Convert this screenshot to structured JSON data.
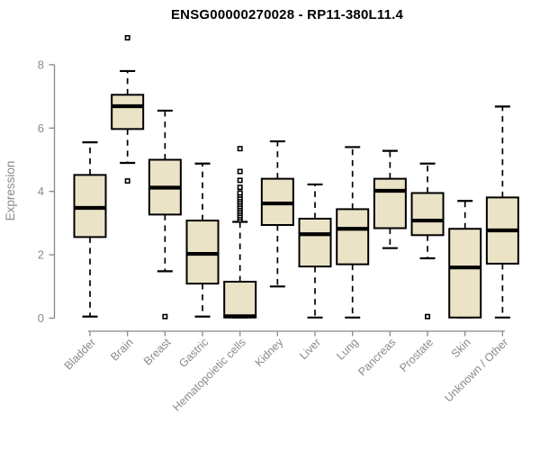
{
  "chart_data": {
    "type": "boxplot",
    "title": "ENSG00000270028 - RP11-380L11.4",
    "ylabel": "Expression",
    "xlabel": "",
    "ylim": [
      0,
      8
    ],
    "yticks": [
      0,
      2,
      4,
      6,
      8
    ],
    "grid": false,
    "legend": "none",
    "categories": [
      "Bladder",
      "Brain",
      "Breast",
      "Gastric",
      "Hematopoietic cells",
      "Kidney",
      "Liver",
      "Lung",
      "Pancreas",
      "Prostate",
      "Skin",
      "Unknown / Other"
    ],
    "series": [
      {
        "name": "Bladder",
        "whisker_low": 0.05,
        "q1": 2.56,
        "median": 3.48,
        "q3": 4.52,
        "whisker_high": 5.55,
        "outliers": []
      },
      {
        "name": "Brain",
        "whisker_low": 4.9,
        "q1": 5.97,
        "median": 6.69,
        "q3": 7.05,
        "whisker_high": 7.8,
        "outliers": [
          8.85,
          4.33
        ]
      },
      {
        "name": "Breast",
        "whisker_low": 1.48,
        "q1": 3.27,
        "median": 4.12,
        "q3": 5.0,
        "whisker_high": 6.55,
        "outliers": [
          0.05
        ]
      },
      {
        "name": "Gastric",
        "whisker_low": 0.05,
        "q1": 1.09,
        "median": 2.03,
        "q3": 3.08,
        "whisker_high": 4.88,
        "outliers": []
      },
      {
        "name": "Hematopoietic cells",
        "whisker_low": 0.02,
        "q1": 0.02,
        "median": 0.06,
        "q3": 1.15,
        "whisker_high": 3.04,
        "outliers": [
          3.1,
          3.17,
          3.24,
          3.31,
          3.38,
          3.45,
          3.52,
          3.59,
          3.66,
          3.73,
          3.8,
          3.88,
          3.95,
          4.13,
          4.35,
          4.63,
          5.35
        ]
      },
      {
        "name": "Kidney",
        "whisker_low": 1.0,
        "q1": 2.94,
        "median": 3.62,
        "q3": 4.4,
        "whisker_high": 5.58,
        "outliers": []
      },
      {
        "name": "Liver",
        "whisker_low": 0.02,
        "q1": 1.63,
        "median": 2.65,
        "q3": 3.14,
        "whisker_high": 4.22,
        "outliers": []
      },
      {
        "name": "Lung",
        "whisker_low": 0.02,
        "q1": 1.7,
        "median": 2.82,
        "q3": 3.44,
        "whisker_high": 5.4,
        "outliers": []
      },
      {
        "name": "Pancreas",
        "whisker_low": 2.21,
        "q1": 2.84,
        "median": 4.02,
        "q3": 4.4,
        "whisker_high": 5.28,
        "outliers": []
      },
      {
        "name": "Prostate",
        "whisker_low": 1.89,
        "q1": 2.62,
        "median": 3.08,
        "q3": 3.95,
        "whisker_high": 4.88,
        "outliers": [
          0.05
        ]
      },
      {
        "name": "Skin",
        "whisker_low": 0.02,
        "q1": 0.02,
        "median": 1.6,
        "q3": 2.82,
        "whisker_high": 3.7,
        "outliers": []
      },
      {
        "name": "Unknown / Other",
        "whisker_low": 0.02,
        "q1": 1.72,
        "median": 2.77,
        "q3": 3.81,
        "whisker_high": 6.68,
        "outliers": []
      }
    ],
    "colors": {
      "box_fill": "#EAE3C6",
      "box_border": "#000000",
      "median": "#000000",
      "whisker": "#000000",
      "outlier": "#000000",
      "axis": "#888888",
      "tick_label": "#8a8a8a",
      "title": "#000000",
      "background": "#FFFFFF"
    }
  }
}
